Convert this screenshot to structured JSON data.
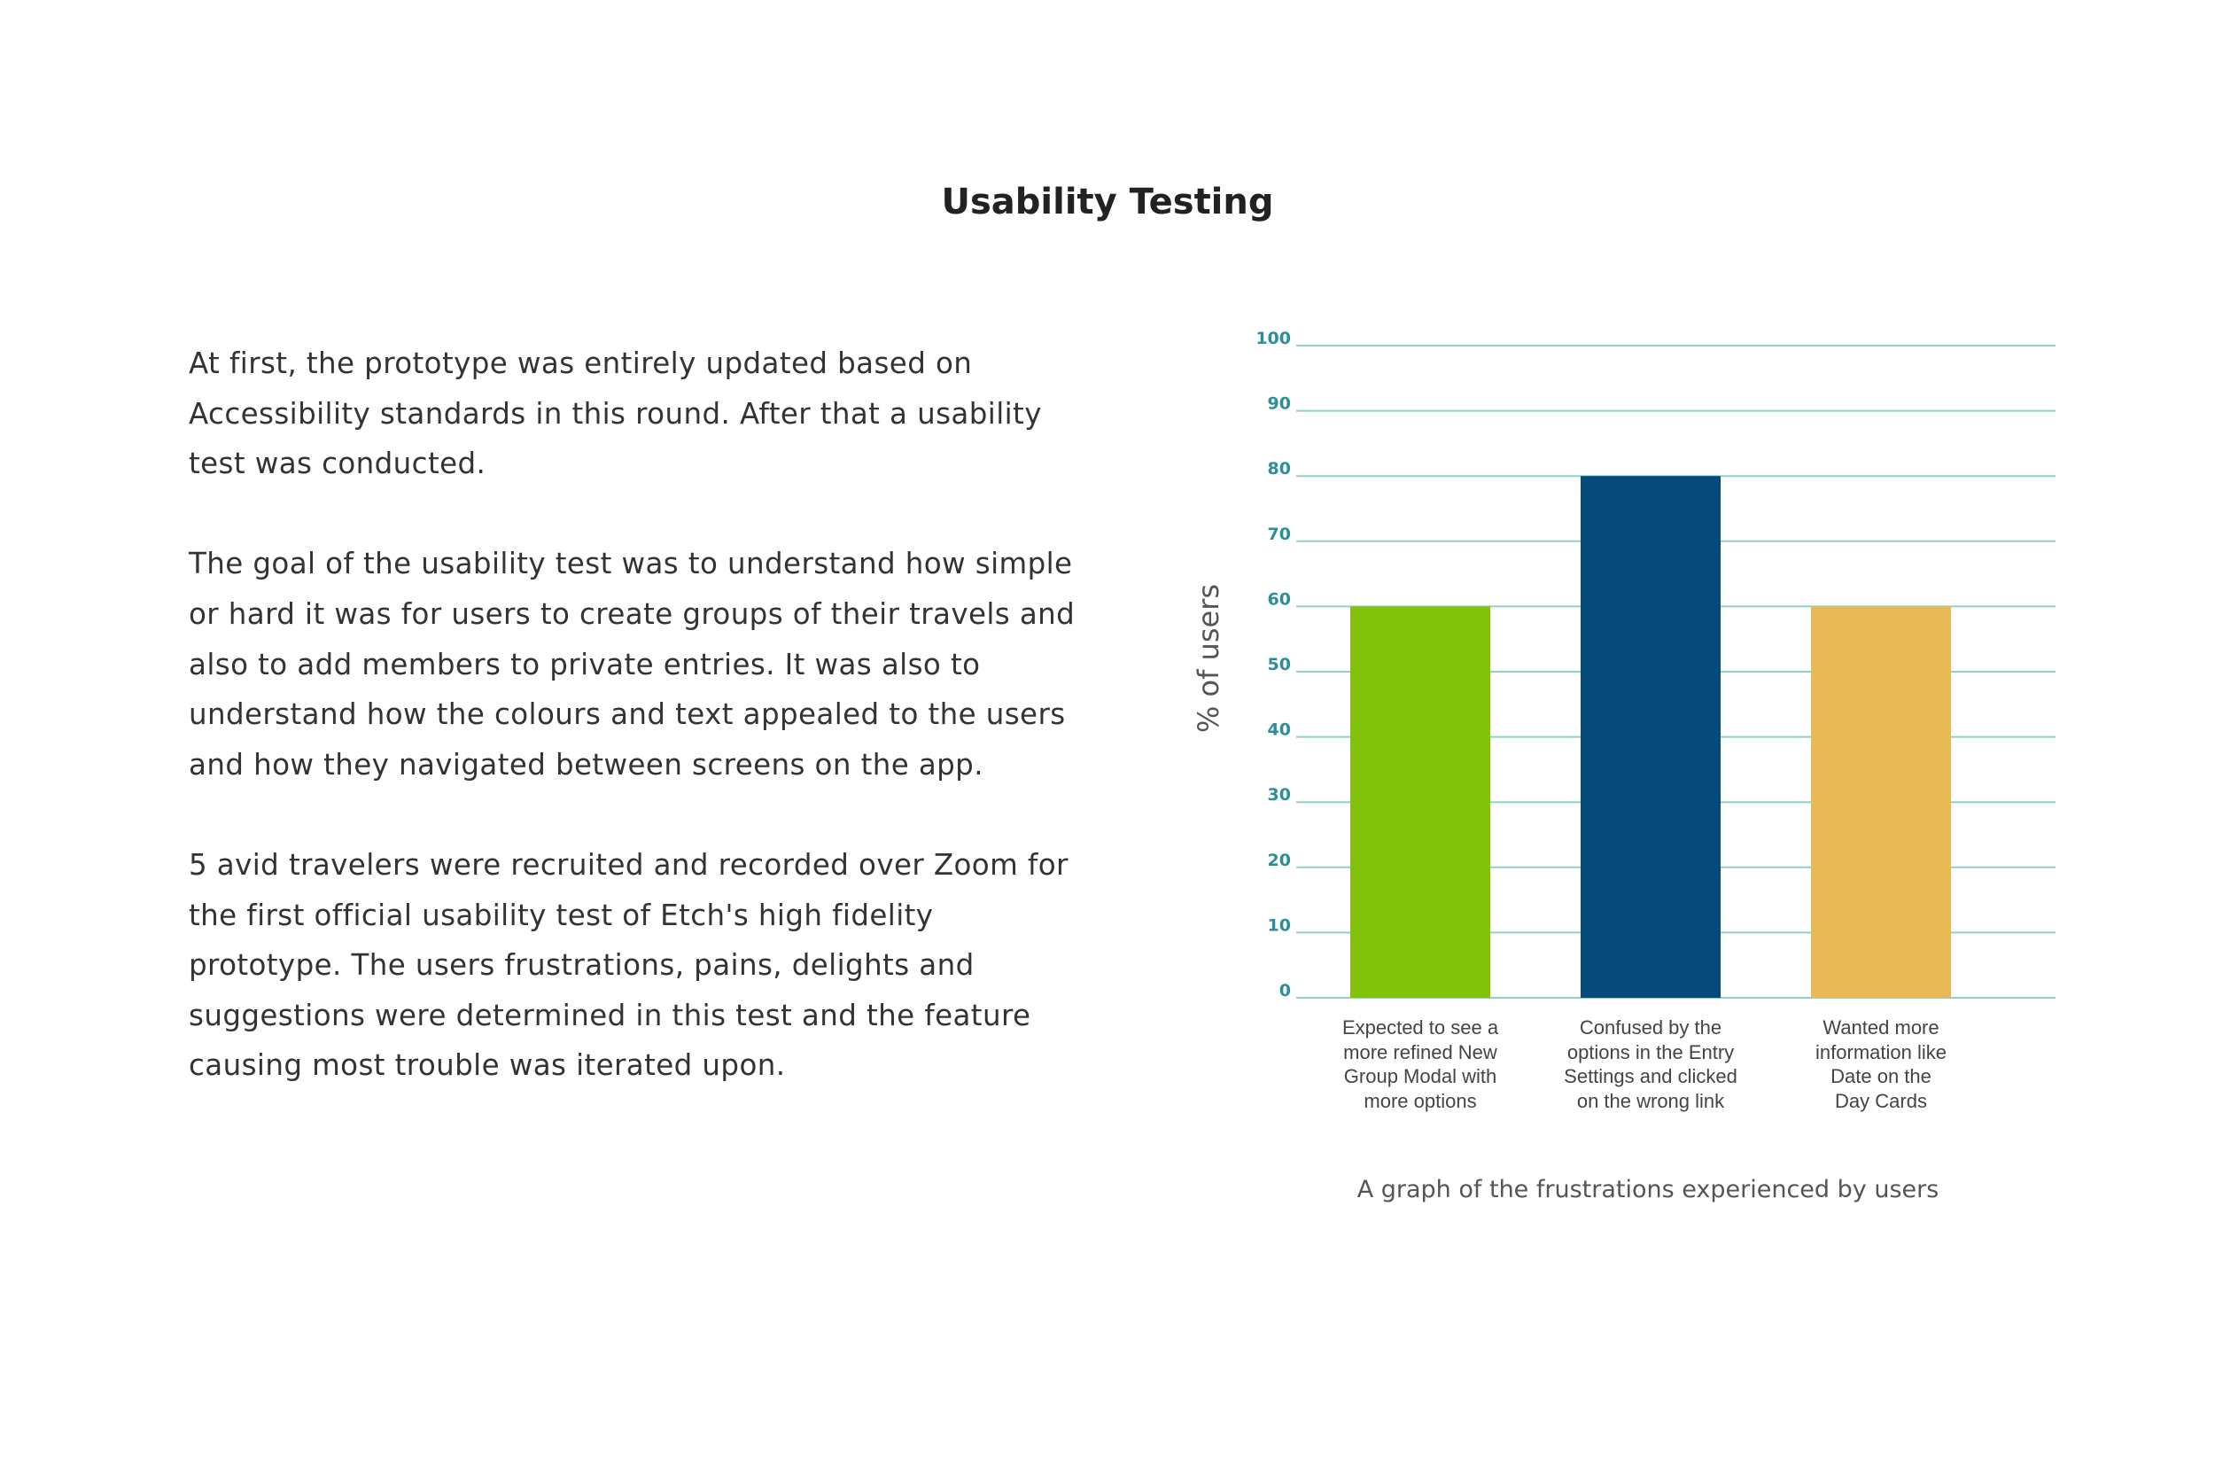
{
  "page": {
    "title": "Usability Testing",
    "paragraphs": [
      "At first, the prototype was entirely updated based on Accessibility standards in this round. After that a usability test was conducted.",
      "The goal of the usability test was to understand how simple or hard it was for users to create groups of their travels and also to add members to private entries. It was also to understand how the colours and text appealed to the users and how they navigated between screens on the app.",
      "5 avid travelers were recruited and recorded over Zoom for the first official usability test of Etch's high fidelity prototype. The users frustrations, pains, delights and suggestions were determined in this test and the feature causing most trouble was iterated upon."
    ],
    "caption": "A graph of the frustrations experienced by users"
  },
  "chart_data": {
    "type": "bar",
    "title": "",
    "xlabel": "",
    "ylabel": "% of users",
    "ylim": [
      0,
      100
    ],
    "yticks": [
      0,
      10,
      20,
      30,
      40,
      50,
      60,
      70,
      80,
      90,
      100
    ],
    "grid": true,
    "categories": [
      "Expected to see a more refined New Group Modal with more options",
      "Confused by the options in the Entry Settings and clicked on the wrong link",
      "Wanted more information like Date on the Day Cards"
    ],
    "category_lines": [
      [
        "Expected to see a",
        "more refined New",
        "Group Modal with",
        "more options"
      ],
      [
        "Confused by the",
        "options in the Entry",
        "Settings and clicked",
        "on the wrong link"
      ],
      [
        "Wanted more",
        "information like",
        "Date on the",
        "Day Cards"
      ]
    ],
    "values": [
      60,
      80,
      60
    ],
    "bar_colors": [
      "#82c20a",
      "#064a79",
      "#e8ba55"
    ],
    "grid_color": "#8ed1cc",
    "tick_color": "#2b8e98"
  }
}
